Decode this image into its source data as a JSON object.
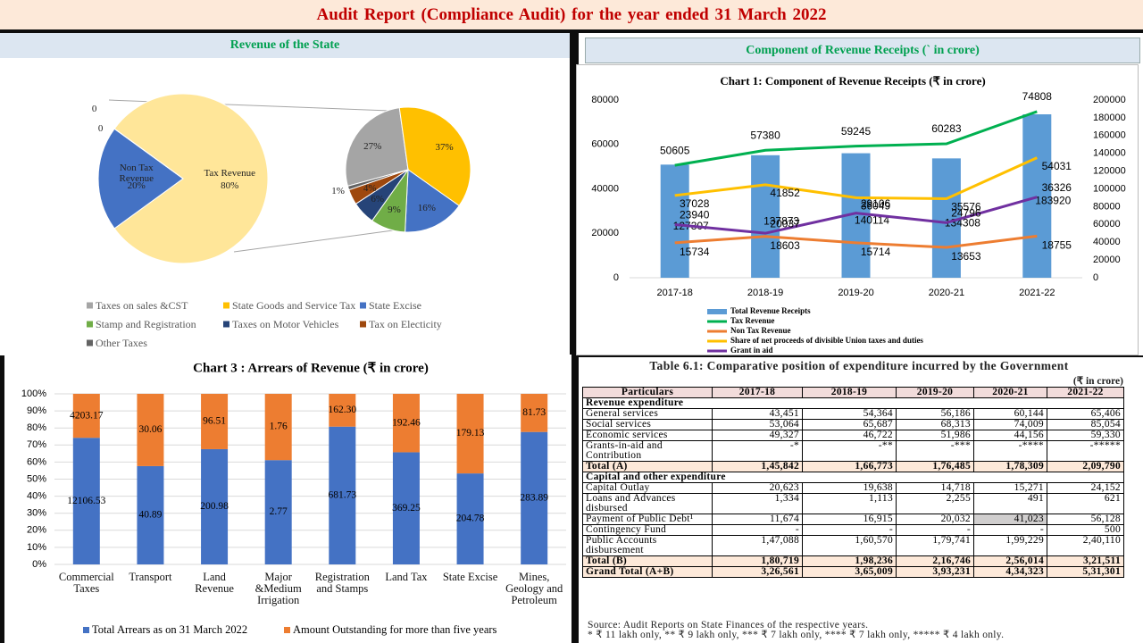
{
  "header": {
    "title": "Audit Report (Compliance Audit) for the year ended 31 March 2022"
  },
  "panels": [
    "Revenue of the State",
    "Component of Revenue Receipts (` in crore)"
  ],
  "chart_data": [
    {
      "type": "pie_of_pie",
      "categories": [
        "Tax Revenue",
        "Non Tax Revenue",
        null,
        null
      ],
      "values": [
        80,
        20,
        0,
        0
      ],
      "value_labels": [
        "80%",
        "20%",
        "0",
        "0"
      ],
      "colors": [
        "#ffe699",
        "#4472c4"
      ],
      "breakdown": {
        "categories": [
          "Taxes on sales &CST",
          "State Goods and Service Tax",
          "State Excise",
          "Stamp and Registration",
          "Taxes on Motor Vehicles",
          "Tax on Electicity",
          "Other Taxes"
        ],
        "values": [
          27,
          37,
          16,
          9,
          6,
          4,
          1
        ],
        "value_labels": [
          "27%",
          "37%",
          "16%",
          "9%",
          "6%",
          "4%",
          "1%"
        ],
        "colors": [
          "#a5a5a5",
          "#ffc000",
          "#4472c4",
          "#70ad47",
          "#264478",
          "#9e480e",
          "#636363"
        ]
      }
    },
    {
      "type": "combo",
      "title": "Chart 1: Component of Revenue Receipts (₹ in crore)",
      "categories": [
        "2017-18",
        "2018-19",
        "2019-20",
        "2020-21",
        "2021-22"
      ],
      "series": [
        {
          "name": "Total Revenue Receipts",
          "type": "bar",
          "axis": "y2",
          "color": "#5b9bd5",
          "values": [
            127307,
            137873,
            140114,
            134308,
            183920
          ]
        },
        {
          "name": "Tax Revenue",
          "type": "line",
          "color": "#00b050",
          "values": [
            50605,
            57380,
            59245,
            60283,
            74808
          ]
        },
        {
          "name": "Non Tax Revenue",
          "type": "line",
          "color": "#ed7d31",
          "values": [
            15734,
            18603,
            15714,
            13653,
            18755
          ]
        },
        {
          "name": "Share of net proceeds of divisible Union taxes and duties",
          "type": "line",
          "color": "#ffc000",
          "values": [
            37028,
            41852,
            36049,
            35576,
            54031
          ]
        },
        {
          "name": "Grant in aid",
          "type": "line",
          "color": "#7030a0",
          "values": [
            23940,
            20037,
            29106,
            24796,
            36326
          ]
        }
      ],
      "ylim": [
        0,
        80000
      ],
      "yticks": [
        0,
        20000,
        40000,
        60000,
        80000
      ],
      "y2lim": [
        0,
        200000
      ],
      "y2ticks": [
        0,
        20000,
        40000,
        60000,
        80000,
        100000,
        120000,
        140000,
        160000,
        180000,
        200000
      ],
      "legend": "bottom"
    },
    {
      "type": "stacked_percent_bar",
      "title": "Chart 3 : Arrears of Revenue (₹ in crore)",
      "categories": [
        "Commercial Taxes",
        "Transport",
        "Land Revenue",
        "Major &Medium Irrigation",
        "Registration and Stamps",
        "Land Tax",
        "State Excise",
        "Mines, Geology and Petroleum"
      ],
      "series": [
        {
          "name": "Total Arrears as on 31 March 2022",
          "color": "#4472c4",
          "values": [
            12106.53,
            40.89,
            200.98,
            2.77,
            681.73,
            369.25,
            204.78,
            283.89
          ]
        },
        {
          "name": "Amount Outstanding for more than five years",
          "color": "#ed7d31",
          "values": [
            4203.17,
            30.06,
            96.51,
            1.76,
            162.3,
            192.46,
            179.13,
            81.73
          ],
          "value_labels": [
            "4203.17",
            "30.06",
            "96.51",
            "1.76",
            "162.30",
            "192.46",
            "179.13",
            "81.73"
          ]
        }
      ],
      "ylim": [
        0,
        100
      ],
      "yticks": [
        {
          "value": 0,
          "label": "0%"
        },
        {
          "value": 10,
          "label": "10%"
        },
        {
          "value": 20,
          "label": "20%"
        },
        {
          "value": 30,
          "label": "30%"
        },
        {
          "value": 40,
          "label": "40%"
        },
        {
          "value": 50,
          "label": "50%"
        },
        {
          "value": 60,
          "label": "60%"
        },
        {
          "value": 70,
          "label": "70%"
        },
        {
          "value": 80,
          "label": "80%"
        },
        {
          "value": 90,
          "label": "90%"
        },
        {
          "value": 100,
          "label": "100%"
        }
      ],
      "grid": true,
      "legend": "bottom"
    }
  ],
  "table": {
    "title": "Table 6.1: Comparative position of expenditure incurred by the Government",
    "unit": "(₹ in crore)",
    "columns": [
      "Particulars",
      "2017-18",
      "2018-19",
      "2019-20",
      "2020-21",
      "2021-22"
    ],
    "rows": [
      [
        "Revenue expenditure"
      ],
      [
        "General services",
        "43,451",
        "54,364",
        "56,186",
        "60,144",
        "65,406"
      ],
      [
        "Social services",
        "53,064",
        "65,687",
        "68,313",
        "74,009",
        "85,054"
      ],
      [
        "Economic services",
        "49,327",
        "46,722",
        "51,986",
        "44,156",
        "59,330"
      ],
      [
        "Grants-in-aid and Contribution",
        "-*",
        "-**",
        "-***",
        "-****",
        "-*****"
      ],
      [
        "Total (A)",
        "1,45,842",
        "1,66,773",
        "1,76,485",
        "1,78,309",
        "2,09,790"
      ],
      [
        "Capital and other expenditure"
      ],
      [
        "Capital Outlay",
        "20,623",
        "19,638",
        "14,718",
        "15,271",
        "24,152"
      ],
      [
        "Loans and Advances disbursed",
        "1,334",
        "1,113",
        "2,255",
        "491",
        "621"
      ],
      [
        "Payment of Public Debt¹",
        "11,674",
        "16,915",
        "20,032",
        "41,023",
        "56,128"
      ],
      [
        "Contingency Fund",
        "-",
        "-",
        "-",
        "-",
        "500"
      ],
      [
        "Public Accounts disbursement",
        "1,47,088",
        "1,60,570",
        "1,79,741",
        "1,99,229",
        "2,40,110"
      ],
      [
        "Total (B)",
        "1,80,719",
        "1,98,236",
        "2,16,746",
        "2,56,014",
        "3,21,511"
      ],
      [
        "Grand Total (A+B)",
        "3,26,561",
        "3,65,009",
        "3,93,231",
        "4,34,323",
        "5,31,301"
      ]
    ],
    "notes": [
      "Source: Audit Reports on State Finances of the respective years.",
      "* ₹ 11 lakh only, ** ₹ 9 lakh only, *** ₹ 7 lakh only, **** ₹ 7 lakh only, ***** ₹ 4 lakh only."
    ]
  }
}
